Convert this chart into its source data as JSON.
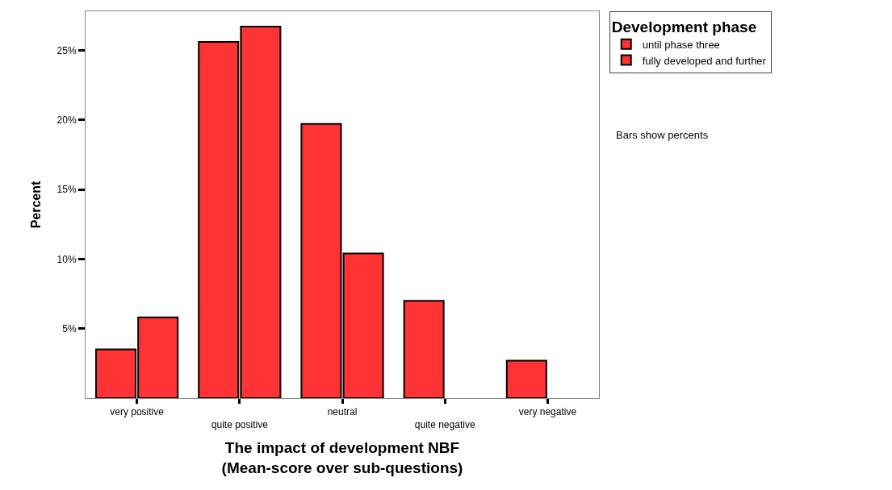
{
  "chart_data": {
    "type": "bar",
    "xlabel": "The impact of development NBF\n(Mean-score over sub-questions)",
    "ylabel": "Percent",
    "legend_title": "Development phase",
    "categories": [
      "very positive",
      "quite positive",
      "neutral",
      "quite negative",
      "very negative"
    ],
    "series": [
      {
        "name": "until phase three",
        "color": "#ff3333",
        "values": [
          3.5,
          25.6,
          19.7,
          7.0,
          2.7
        ]
      },
      {
        "name": "fully developed and further",
        "color": "#ff3333",
        "values": [
          5.8,
          26.7,
          10.4,
          null,
          null
        ]
      }
    ],
    "ylim": [
      0,
      27.8
    ],
    "yticks": [
      {
        "value": 5,
        "label": "5%"
      },
      {
        "value": 10,
        "label": "10%"
      },
      {
        "value": 15,
        "label": "15%"
      },
      {
        "value": 20,
        "label": "20%"
      },
      {
        "value": 25,
        "label": "25%"
      }
    ],
    "legend": "top right",
    "annotations": [
      "Bars show percents"
    ]
  }
}
